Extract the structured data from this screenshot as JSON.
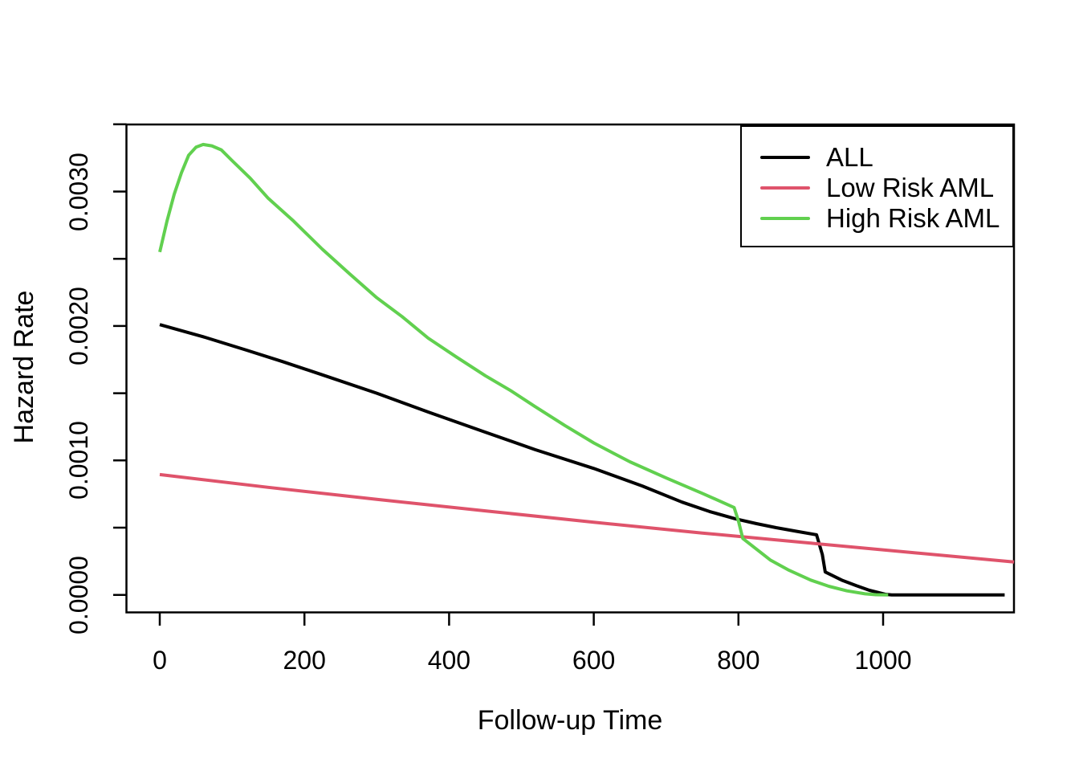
{
  "chart_data": {
    "type": "line",
    "title": "",
    "xlabel": "Follow-up Time",
    "ylabel": "Hazard Rate",
    "xlim": [
      0,
      1185
    ],
    "ylim": [
      0,
      0.0035
    ],
    "grid": false,
    "legend_position": "topright",
    "x_ticks": [
      {
        "value": 0,
        "label": "0"
      },
      {
        "value": 200,
        "label": "200"
      },
      {
        "value": 400,
        "label": "400"
      },
      {
        "value": 600,
        "label": "600"
      },
      {
        "value": 800,
        "label": "800"
      },
      {
        "value": 1000,
        "label": "1000"
      }
    ],
    "y_ticks": [
      {
        "value": 0.0,
        "label": "0.0000"
      },
      {
        "value": 0.0005,
        "label": ""
      },
      {
        "value": 0.001,
        "label": "0.0010"
      },
      {
        "value": 0.0015,
        "label": ""
      },
      {
        "value": 0.002,
        "label": "0.0020"
      },
      {
        "value": 0.0025,
        "label": ""
      },
      {
        "value": 0.003,
        "label": "0.0030"
      },
      {
        "value": 0.0035,
        "label": ""
      }
    ],
    "series": [
      {
        "name": "ALL",
        "color": "#000000",
        "points": [
          [
            0,
            0.00201
          ],
          [
            60,
            0.00192
          ],
          [
            120,
            0.00182
          ],
          [
            170,
            0.001735
          ],
          [
            223,
            0.00164
          ],
          [
            300,
            0.0015
          ],
          [
            371,
            0.00136
          ],
          [
            450,
            0.00121
          ],
          [
            519,
            0.00108
          ],
          [
            600,
            0.00094
          ],
          [
            667,
            0.00081
          ],
          [
            722,
            0.00069
          ],
          [
            760,
            0.00062
          ],
          [
            796,
            0.000565
          ],
          [
            825,
            0.00053
          ],
          [
            852,
            0.0005
          ],
          [
            880,
            0.000473
          ],
          [
            908,
            0.000447
          ],
          [
            916,
            0.0003
          ],
          [
            920,
            0.00017
          ],
          [
            944,
            0.000107
          ],
          [
            963,
            6.8e-05
          ],
          [
            981,
            3.4e-05
          ],
          [
            1003,
            4e-06
          ],
          [
            1012,
            0
          ],
          [
            1168,
            0
          ]
        ]
      },
      {
        "name": "Low Risk AML",
        "color": "#DF536B",
        "points": [
          [
            0,
            0.000895
          ],
          [
            150,
            0.0008
          ],
          [
            300,
            0.00071
          ],
          [
            450,
            0.000625
          ],
          [
            600,
            0.00054
          ],
          [
            750,
            0.00046
          ],
          [
            900,
            0.000385
          ],
          [
            1040,
            0.000315
          ],
          [
            1181,
            0.000245
          ]
        ]
      },
      {
        "name": "High Risk AML",
        "color": "#61D04F",
        "points": [
          [
            0,
            0.00255
          ],
          [
            10,
            0.00278
          ],
          [
            20,
            0.00298
          ],
          [
            30,
            0.00314
          ],
          [
            40,
            0.00327
          ],
          [
            50,
            0.00333
          ],
          [
            60,
            0.00335
          ],
          [
            72,
            0.00334
          ],
          [
            85,
            0.00331
          ],
          [
            100,
            0.00323
          ],
          [
            125,
            0.0031
          ],
          [
            150,
            0.00295
          ],
          [
            185,
            0.00278
          ],
          [
            225,
            0.00257
          ],
          [
            262,
            0.00239
          ],
          [
            300,
            0.00221
          ],
          [
            335,
            0.00207
          ],
          [
            371,
            0.00191
          ],
          [
            410,
            0.00177
          ],
          [
            450,
            0.00163
          ],
          [
            485,
            0.00152
          ],
          [
            519,
            0.0014
          ],
          [
            560,
            0.00126
          ],
          [
            600,
            0.00113
          ],
          [
            650,
            0.00099
          ],
          [
            700,
            0.00087
          ],
          [
            750,
            0.000755
          ],
          [
            794,
            0.00065
          ],
          [
            800,
            0.00055
          ],
          [
            806,
            0.00042
          ],
          [
            825,
            0.00034
          ],
          [
            844,
            0.00026
          ],
          [
            870,
            0.000183
          ],
          [
            900,
            0.00011
          ],
          [
            925,
            6.4e-05
          ],
          [
            950,
            3e-05
          ],
          [
            975,
            8e-06
          ],
          [
            990,
            1e-06
          ],
          [
            1007,
            0
          ]
        ]
      }
    ]
  }
}
